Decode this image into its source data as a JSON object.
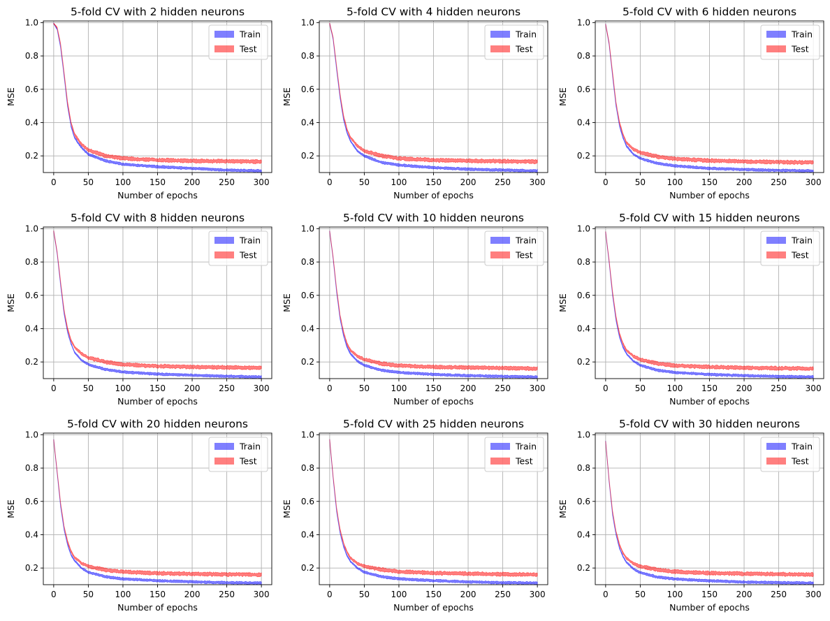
{
  "chart_data": [
    {
      "type": "line",
      "title": "5-fold CV with 2 hidden neurons",
      "xlabel": "Number of epochs",
      "ylabel": "MSE",
      "xlim": [
        -15,
        315
      ],
      "ylim": [
        0.1,
        1.01
      ],
      "xticks": [
        0,
        50,
        100,
        150,
        200,
        250,
        300
      ],
      "yticks": [
        0.2,
        0.4,
        0.6,
        0.8,
        1.0
      ],
      "grid": true,
      "legend": "top-right",
      "series": [
        {
          "name": "Train",
          "color": "#0000ff",
          "x": [
            0,
            5,
            10,
            15,
            20,
            25,
            30,
            40,
            50,
            75,
            100,
            150,
            200,
            250,
            300
          ],
          "y": [
            0.995,
            0.96,
            0.85,
            0.68,
            0.5,
            0.38,
            0.31,
            0.25,
            0.21,
            0.17,
            0.15,
            0.135,
            0.125,
            0.115,
            0.11
          ]
        },
        {
          "name": "Test",
          "color": "#ff0000",
          "x": [
            0,
            5,
            10,
            15,
            20,
            25,
            30,
            40,
            50,
            75,
            100,
            150,
            200,
            250,
            300
          ],
          "y": [
            0.995,
            0.97,
            0.87,
            0.7,
            0.52,
            0.4,
            0.33,
            0.27,
            0.235,
            0.2,
            0.185,
            0.175,
            0.17,
            0.168,
            0.165
          ]
        }
      ]
    },
    {
      "type": "line",
      "title": "5-fold CV with 4 hidden neurons",
      "xlabel": "Number of epochs",
      "ylabel": "MSE",
      "xlim": [
        -15,
        315
      ],
      "ylim": [
        0.1,
        1.01
      ],
      "xticks": [
        0,
        50,
        100,
        150,
        200,
        250,
        300
      ],
      "yticks": [
        0.2,
        0.4,
        0.6,
        0.8,
        1.0
      ],
      "grid": true,
      "legend": "top-right",
      "series": [
        {
          "name": "Train",
          "color": "#0000ff",
          "x": [
            0,
            5,
            10,
            15,
            20,
            25,
            30,
            40,
            50,
            75,
            100,
            150,
            200,
            250,
            300
          ],
          "y": [
            0.995,
            0.9,
            0.72,
            0.55,
            0.42,
            0.34,
            0.29,
            0.23,
            0.2,
            0.16,
            0.145,
            0.13,
            0.12,
            0.115,
            0.11
          ]
        },
        {
          "name": "Test",
          "color": "#ff0000",
          "x": [
            0,
            5,
            10,
            15,
            20,
            25,
            30,
            40,
            50,
            75,
            100,
            150,
            200,
            250,
            300
          ],
          "y": [
            0.995,
            0.91,
            0.74,
            0.57,
            0.44,
            0.36,
            0.31,
            0.26,
            0.23,
            0.2,
            0.185,
            0.175,
            0.17,
            0.168,
            0.165
          ]
        }
      ]
    },
    {
      "type": "line",
      "title": "5-fold CV with 6 hidden neurons",
      "xlabel": "Number of epochs",
      "ylabel": "MSE",
      "xlim": [
        -15,
        315
      ],
      "ylim": [
        0.1,
        1.01
      ],
      "xticks": [
        0,
        50,
        100,
        150,
        200,
        250,
        300
      ],
      "yticks": [
        0.2,
        0.4,
        0.6,
        0.8,
        1.0
      ],
      "grid": true,
      "legend": "top-right",
      "series": [
        {
          "name": "Train",
          "color": "#0000ff",
          "x": [
            0,
            5,
            10,
            15,
            20,
            25,
            30,
            40,
            50,
            75,
            100,
            150,
            200,
            250,
            300
          ],
          "y": [
            0.99,
            0.87,
            0.68,
            0.5,
            0.38,
            0.31,
            0.26,
            0.21,
            0.185,
            0.155,
            0.14,
            0.125,
            0.118,
            0.113,
            0.11
          ]
        },
        {
          "name": "Test",
          "color": "#ff0000",
          "x": [
            0,
            5,
            10,
            15,
            20,
            25,
            30,
            40,
            50,
            75,
            100,
            150,
            200,
            250,
            300
          ],
          "y": [
            0.99,
            0.88,
            0.7,
            0.52,
            0.4,
            0.33,
            0.28,
            0.24,
            0.22,
            0.195,
            0.182,
            0.172,
            0.166,
            0.163,
            0.16
          ]
        }
      ]
    },
    {
      "type": "line",
      "title": "5-fold CV with 8 hidden neurons",
      "xlabel": "Number of epochs",
      "ylabel": "MSE",
      "xlim": [
        -15,
        315
      ],
      "ylim": [
        0.1,
        1.01
      ],
      "xticks": [
        0,
        50,
        100,
        150,
        200,
        250,
        300
      ],
      "yticks": [
        0.2,
        0.4,
        0.6,
        0.8,
        1.0
      ],
      "grid": true,
      "legend": "top-right",
      "series": [
        {
          "name": "Train",
          "color": "#0000ff",
          "x": [
            0,
            5,
            10,
            15,
            20,
            25,
            30,
            40,
            50,
            75,
            100,
            150,
            200,
            250,
            300
          ],
          "y": [
            0.985,
            0.85,
            0.66,
            0.49,
            0.38,
            0.31,
            0.26,
            0.21,
            0.185,
            0.155,
            0.14,
            0.127,
            0.12,
            0.114,
            0.11
          ]
        },
        {
          "name": "Test",
          "color": "#ff0000",
          "x": [
            0,
            5,
            10,
            15,
            20,
            25,
            30,
            40,
            50,
            75,
            100,
            150,
            200,
            250,
            300
          ],
          "y": [
            0.985,
            0.86,
            0.68,
            0.51,
            0.4,
            0.33,
            0.29,
            0.25,
            0.225,
            0.2,
            0.185,
            0.175,
            0.17,
            0.167,
            0.165
          ]
        }
      ]
    },
    {
      "type": "line",
      "title": "5-fold CV with 10 hidden neurons",
      "xlabel": "Number of epochs",
      "ylabel": "MSE",
      "xlim": [
        -15,
        315
      ],
      "ylim": [
        0.1,
        1.01
      ],
      "xticks": [
        0,
        50,
        100,
        150,
        200,
        250,
        300
      ],
      "yticks": [
        0.2,
        0.4,
        0.6,
        0.8,
        1.0
      ],
      "grid": true,
      "legend": "top-right",
      "series": [
        {
          "name": "Train",
          "color": "#0000ff",
          "x": [
            0,
            5,
            10,
            15,
            20,
            25,
            30,
            40,
            50,
            75,
            100,
            150,
            200,
            250,
            300
          ],
          "y": [
            0.985,
            0.82,
            0.62,
            0.46,
            0.36,
            0.29,
            0.25,
            0.205,
            0.18,
            0.15,
            0.137,
            0.125,
            0.118,
            0.113,
            0.11
          ]
        },
        {
          "name": "Test",
          "color": "#ff0000",
          "x": [
            0,
            5,
            10,
            15,
            20,
            25,
            30,
            40,
            50,
            75,
            100,
            150,
            200,
            250,
            300
          ],
          "y": [
            0.985,
            0.83,
            0.64,
            0.48,
            0.38,
            0.31,
            0.27,
            0.235,
            0.215,
            0.19,
            0.178,
            0.17,
            0.166,
            0.163,
            0.16
          ]
        }
      ]
    },
    {
      "type": "line",
      "title": "5-fold CV with 15 hidden neurons",
      "xlabel": "Number of epochs",
      "ylabel": "MSE",
      "xlim": [
        -15,
        315
      ],
      "ylim": [
        0.1,
        1.01
      ],
      "xticks": [
        0,
        50,
        100,
        150,
        200,
        250,
        300
      ],
      "yticks": [
        0.2,
        0.4,
        0.6,
        0.8,
        1.0
      ],
      "grid": true,
      "legend": "top-right",
      "series": [
        {
          "name": "Train",
          "color": "#0000ff",
          "x": [
            0,
            5,
            10,
            15,
            20,
            25,
            30,
            40,
            50,
            75,
            100,
            150,
            200,
            250,
            300
          ],
          "y": [
            0.98,
            0.8,
            0.6,
            0.45,
            0.35,
            0.29,
            0.25,
            0.205,
            0.18,
            0.15,
            0.137,
            0.125,
            0.118,
            0.113,
            0.11
          ]
        },
        {
          "name": "Test",
          "color": "#ff0000",
          "x": [
            0,
            5,
            10,
            15,
            20,
            25,
            30,
            40,
            50,
            75,
            100,
            150,
            200,
            250,
            300
          ],
          "y": [
            0.98,
            0.81,
            0.62,
            0.47,
            0.37,
            0.31,
            0.27,
            0.235,
            0.215,
            0.19,
            0.178,
            0.17,
            0.165,
            0.162,
            0.16
          ]
        }
      ]
    },
    {
      "type": "line",
      "title": "5-fold CV with 20 hidden neurons",
      "xlabel": "Number of epochs",
      "ylabel": "MSE",
      "xlim": [
        -15,
        315
      ],
      "ylim": [
        0.1,
        1.01
      ],
      "xticks": [
        0,
        50,
        100,
        150,
        200,
        250,
        300
      ],
      "yticks": [
        0.2,
        0.4,
        0.6,
        0.8,
        1.0
      ],
      "grid": true,
      "legend": "top-right",
      "series": [
        {
          "name": "Train",
          "color": "#0000ff",
          "x": [
            0,
            5,
            10,
            15,
            20,
            25,
            30,
            40,
            50,
            75,
            100,
            150,
            200,
            250,
            300
          ],
          "y": [
            0.97,
            0.77,
            0.57,
            0.43,
            0.34,
            0.28,
            0.245,
            0.2,
            0.175,
            0.148,
            0.135,
            0.124,
            0.117,
            0.112,
            0.11
          ]
        },
        {
          "name": "Test",
          "color": "#ff0000",
          "x": [
            0,
            5,
            10,
            15,
            20,
            25,
            30,
            40,
            50,
            75,
            100,
            150,
            200,
            250,
            300
          ],
          "y": [
            0.97,
            0.78,
            0.59,
            0.45,
            0.36,
            0.3,
            0.265,
            0.23,
            0.21,
            0.188,
            0.177,
            0.169,
            0.165,
            0.162,
            0.16
          ]
        }
      ]
    },
    {
      "type": "line",
      "title": "5-fold CV with 25 hidden neurons",
      "xlabel": "Number of epochs",
      "ylabel": "MSE",
      "xlim": [
        -15,
        315
      ],
      "ylim": [
        0.1,
        1.01
      ],
      "xticks": [
        0,
        50,
        100,
        150,
        200,
        250,
        300
      ],
      "yticks": [
        0.2,
        0.4,
        0.6,
        0.8,
        1.0
      ],
      "grid": true,
      "legend": "top-right",
      "series": [
        {
          "name": "Train",
          "color": "#0000ff",
          "x": [
            0,
            5,
            10,
            15,
            20,
            25,
            30,
            40,
            50,
            75,
            100,
            150,
            200,
            250,
            300
          ],
          "y": [
            0.97,
            0.74,
            0.54,
            0.41,
            0.33,
            0.275,
            0.24,
            0.2,
            0.175,
            0.148,
            0.135,
            0.124,
            0.117,
            0.112,
            0.11
          ]
        },
        {
          "name": "Test",
          "color": "#ff0000",
          "x": [
            0,
            5,
            10,
            15,
            20,
            25,
            30,
            40,
            50,
            75,
            100,
            150,
            200,
            250,
            300
          ],
          "y": [
            0.97,
            0.75,
            0.56,
            0.43,
            0.35,
            0.295,
            0.26,
            0.228,
            0.21,
            0.19,
            0.178,
            0.17,
            0.166,
            0.163,
            0.16
          ]
        }
      ]
    },
    {
      "type": "line",
      "title": "5-fold CV with 30 hidden neurons",
      "xlabel": "Number of epochs",
      "ylabel": "MSE",
      "xlim": [
        -15,
        315
      ],
      "ylim": [
        0.1,
        1.01
      ],
      "xticks": [
        0,
        50,
        100,
        150,
        200,
        250,
        300
      ],
      "yticks": [
        0.2,
        0.4,
        0.6,
        0.8,
        1.0
      ],
      "grid": true,
      "legend": "top-right",
      "series": [
        {
          "name": "Train",
          "color": "#0000ff",
          "x": [
            0,
            5,
            10,
            15,
            20,
            25,
            30,
            40,
            50,
            75,
            100,
            150,
            200,
            250,
            300
          ],
          "y": [
            0.96,
            0.72,
            0.52,
            0.4,
            0.32,
            0.27,
            0.235,
            0.195,
            0.172,
            0.146,
            0.134,
            0.123,
            0.116,
            0.112,
            0.11
          ]
        },
        {
          "name": "Test",
          "color": "#ff0000",
          "x": [
            0,
            5,
            10,
            15,
            20,
            25,
            30,
            40,
            50,
            75,
            100,
            150,
            200,
            250,
            300
          ],
          "y": [
            0.96,
            0.73,
            0.54,
            0.42,
            0.34,
            0.29,
            0.26,
            0.228,
            0.21,
            0.19,
            0.178,
            0.17,
            0.166,
            0.163,
            0.16
          ]
        }
      ]
    }
  ]
}
